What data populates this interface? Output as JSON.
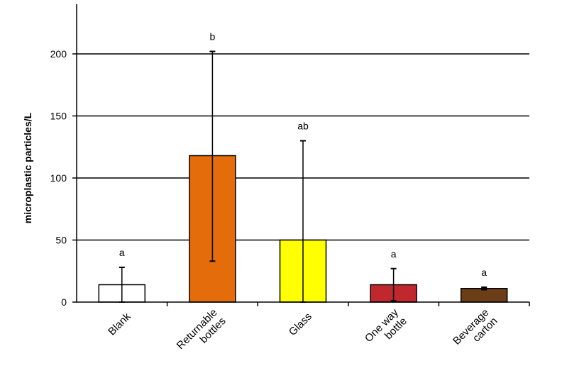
{
  "chart_data": {
    "type": "bar",
    "title": "",
    "xlabel": "",
    "ylabel": "microplastic particles/L",
    "ylim": [
      0,
      240
    ],
    "yticks": [
      "0",
      "50",
      "100",
      "150",
      "200"
    ],
    "grid": "horizontal",
    "categories": [
      [
        "Blank"
      ],
      [
        "Returnable",
        "bottles"
      ],
      [
        "Glass"
      ],
      [
        "One way",
        "bottle"
      ],
      [
        "Beverage",
        "carton"
      ]
    ],
    "values": [
      14,
      118,
      50,
      14,
      11
    ],
    "error_low": [
      0,
      33,
      0,
      1,
      10
    ],
    "error_high": [
      28,
      202,
      130,
      27,
      12
    ],
    "significance": [
      "a",
      "b",
      "ab",
      "a",
      "a"
    ],
    "colors": [
      "#ffffff",
      "#e46c0a",
      "#ffff00",
      "#c0282d",
      "#6b3e18"
    ]
  }
}
